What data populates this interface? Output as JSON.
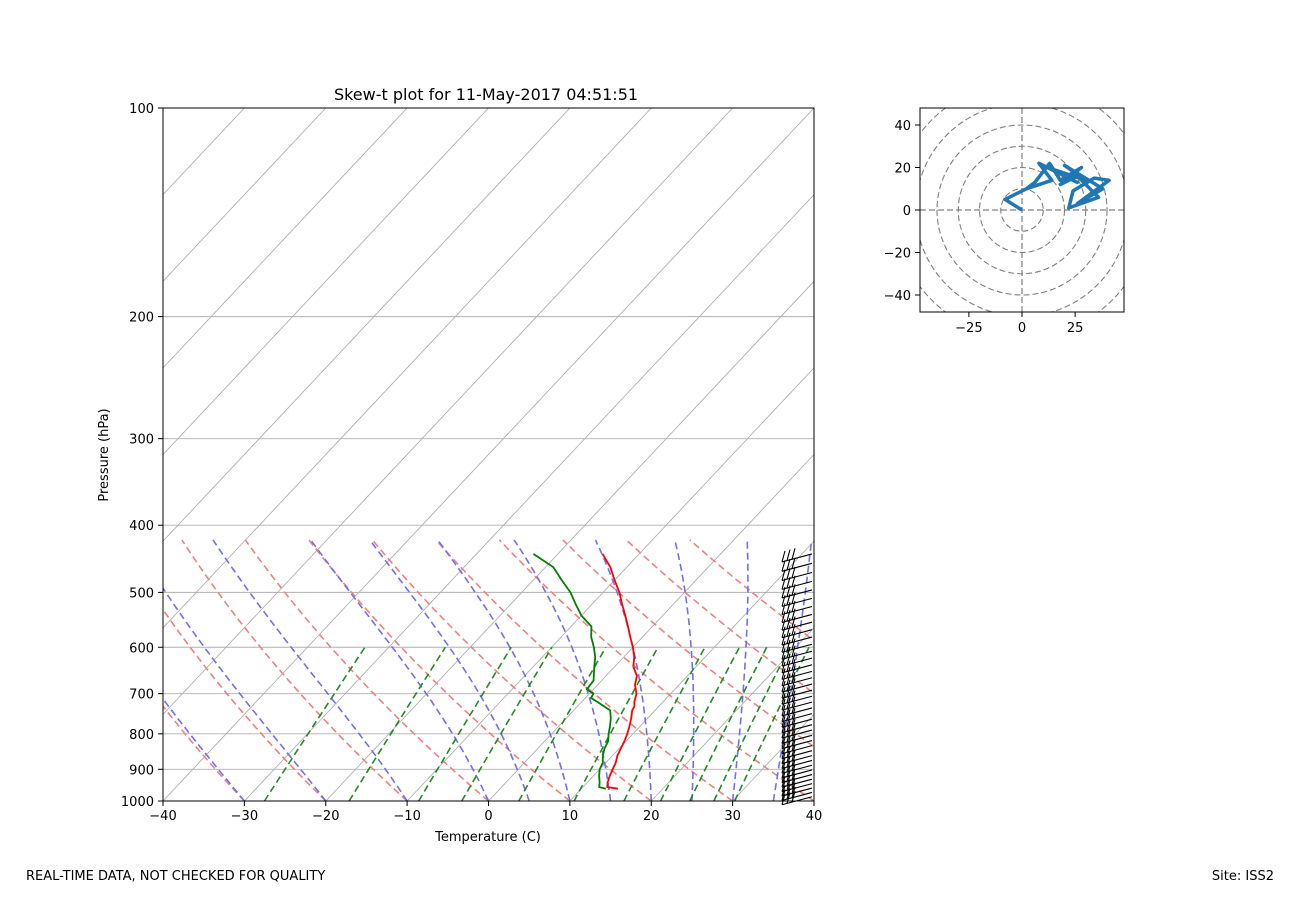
{
  "footer": {
    "note": "REAL-TIME DATA, NOT CHECKED FOR QUALITY",
    "site": "Site: ISS2"
  },
  "chart_data": [
    {
      "type": "line",
      "subtype": "skew-t",
      "title": "Skew-t plot for 11-May-2017 04:51:51",
      "xlabel": "Temperature (C)",
      "ylabel": "Pressure (hPa)",
      "xlim": [
        -40,
        40
      ],
      "ylim": [
        1000,
        100
      ],
      "y_scale": "log",
      "x_ticks": [
        "−40",
        "−30",
        "−20",
        "−10",
        "0",
        "10",
        "20",
        "30",
        "40"
      ],
      "x_tick_values": [
        -40,
        -30,
        -20,
        -10,
        0,
        10,
        20,
        30,
        40
      ],
      "y_ticks": [
        "100",
        "200",
        "300",
        "400",
        "500",
        "600",
        "700",
        "800",
        "900",
        "1000"
      ],
      "y_tick_values": [
        100,
        200,
        300,
        400,
        500,
        600,
        700,
        800,
        900,
        1000
      ],
      "grid": true,
      "colors": {
        "temperature": "#ff0000",
        "dewpoint": "#008000",
        "dry_adiabat": "#f08080",
        "moist_adiabat": "#7070ee",
        "mixing_ratio": "#228b22",
        "isotherm": "#b0b0b0",
        "barb": "#000000"
      },
      "series": [
        {
          "key": "temperature",
          "pressure": [
            960,
            955,
            940,
            920,
            900,
            880,
            860,
            840,
            820,
            800,
            780,
            760,
            740,
            730,
            720,
            700,
            680,
            660,
            640,
            620,
            600,
            580,
            560,
            540,
            520,
            500,
            480,
            460,
            440
          ],
          "values": [
            14.5,
            13.0,
            12.5,
            12.0,
            11.6,
            11.2,
            10.6,
            10.2,
            9.8,
            9.3,
            8.7,
            8.0,
            7.2,
            7.0,
            6.5,
            5.8,
            4.6,
            3.8,
            2.3,
            1.3,
            0.0,
            -1.5,
            -3.0,
            -4.6,
            -6.3,
            -8.0,
            -10.0,
            -12.0,
            -14.5
          ]
        },
        {
          "key": "dewpoint",
          "pressure": [
            960,
            955,
            940,
            920,
            900,
            880,
            860,
            840,
            820,
            800,
            780,
            760,
            740,
            720,
            710,
            700,
            690,
            680,
            670,
            660,
            640,
            620,
            600,
            580,
            560,
            540,
            520,
            500,
            480,
            460,
            440
          ],
          "values": [
            13.0,
            12.0,
            11.5,
            10.7,
            10.0,
            9.6,
            8.8,
            8.2,
            7.8,
            7.0,
            6.3,
            5.5,
            4.5,
            2.0,
            0.7,
            0.5,
            -0.8,
            -0.9,
            -1.0,
            -1.5,
            -2.5,
            -3.5,
            -4.8,
            -6.3,
            -7.5,
            -10.0,
            -12.0,
            -14.0,
            -16.5,
            -19.0,
            -23.0
          ]
        }
      ],
      "mixing_ratio_labels": []
    },
    {
      "type": "line",
      "subtype": "hodograph",
      "title": "",
      "xlim": [
        -48,
        48
      ],
      "ylim": [
        -48,
        48
      ],
      "x_ticks": [
        "−25",
        "0",
        "25"
      ],
      "x_tick_values": [
        -25,
        0,
        25
      ],
      "y_ticks": [
        "40",
        "20",
        "0",
        "−20",
        "−40"
      ],
      "y_tick_values": [
        40,
        20,
        0,
        -20,
        -40
      ],
      "range_rings": [
        10,
        20,
        30,
        40,
        50,
        60
      ],
      "colors": {
        "trace": "#1f77b4",
        "rings": "#808080"
      },
      "series": [
        {
          "u": [
            0,
            -8,
            2,
            14,
            8,
            26,
            15,
            30,
            20,
            38,
            26,
            41,
            34,
            24,
            22,
            36,
            26,
            18,
            28,
            18,
            13,
            6,
            2
          ],
          "v": [
            0,
            5,
            10,
            14,
            22,
            13,
            19,
            14,
            21,
            10,
            3,
            14,
            15,
            9,
            1,
            6,
            16,
            12,
            20,
            14,
            22,
            13,
            10
          ]
        }
      ]
    }
  ]
}
